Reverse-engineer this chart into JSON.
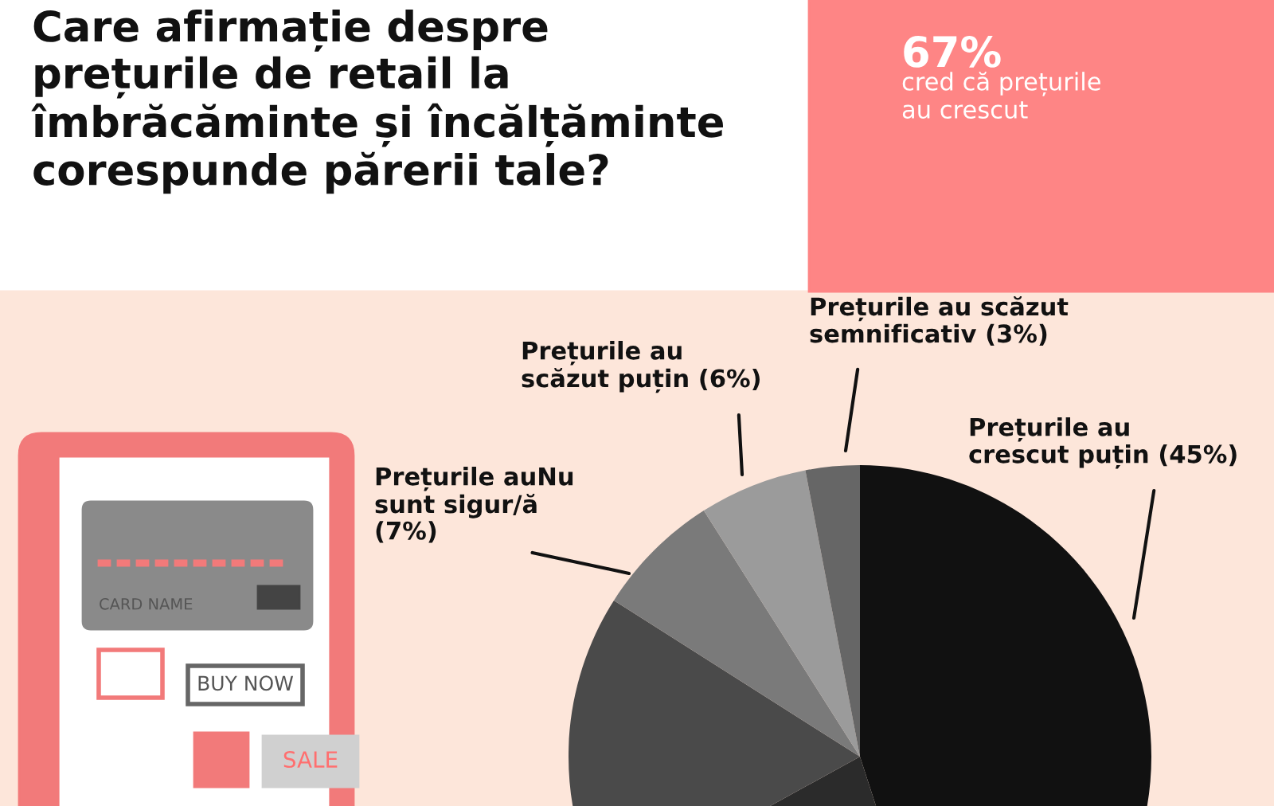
{
  "chart_data": {
    "type": "pie",
    "title": "Care afirmație despre\nprețurile de retail la\nîmbrăcăminte și încălțăminte\ncorespunde părerii tale?",
    "categories": [
      "Prețurile au\ncrescut puțin",
      null,
      null,
      "Prețurile auNu\nsunt sigur/ă",
      "Prețurile au\nscăzut puțin",
      "Prețurile au scăzut\nsemnificativ"
    ],
    "values": [
      45,
      22,
      17,
      7,
      6,
      3
    ],
    "value_labels": [
      "(45%)",
      null,
      null,
      "(7%)",
      "(6%)",
      "(3%)"
    ],
    "colors": [
      "#111111",
      "#2b2b2b",
      "#4a4a4a",
      "#7a7a7a",
      "#9b9b9b",
      "#666666"
    ],
    "annotations": [
      "67%",
      "cred că prețurile\nau crescut",
      "CARD NAME",
      "BUY NOW",
      "SALE"
    ]
  }
}
